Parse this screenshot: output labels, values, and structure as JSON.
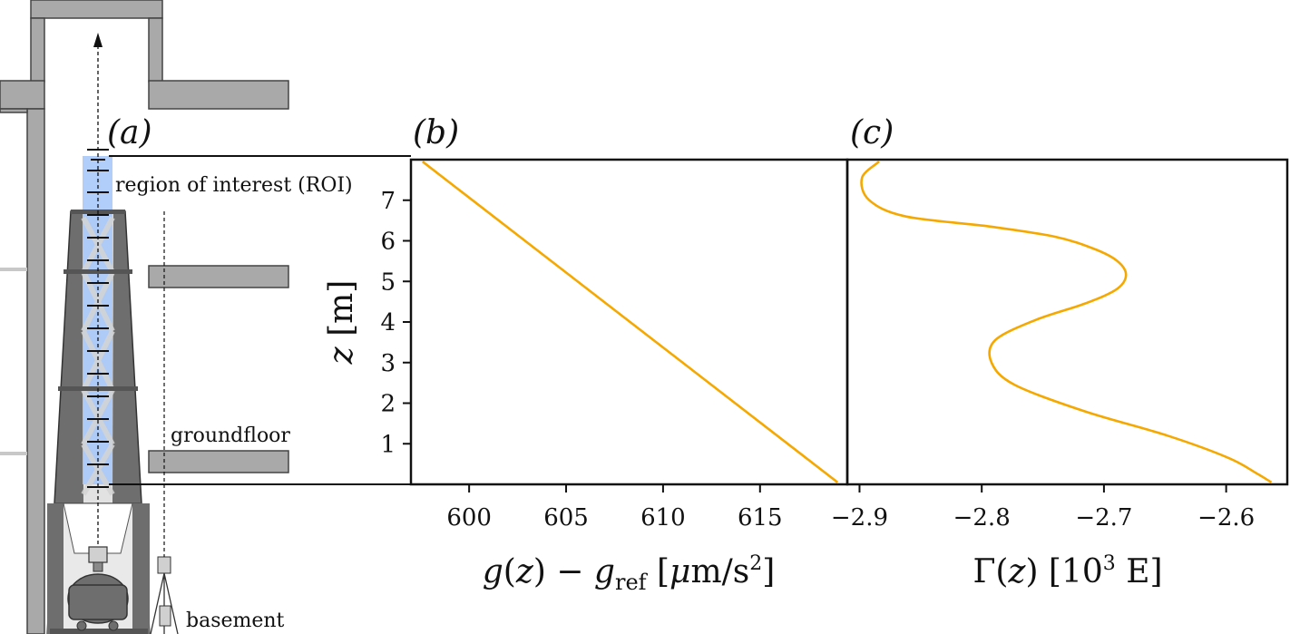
{
  "panels": {
    "a_label": "(a)",
    "b_label": "(b)",
    "c_label": "(c)"
  },
  "diagram": {
    "roi_label": "region of interest (ROI)",
    "groundfloor_label": "groundfloor",
    "basement_label": "basement",
    "colors": {
      "roi": "#a8c8f8",
      "building": "#a9a9a9",
      "tower": "#6e6e6e",
      "gravimeter": "#6e6e6e"
    }
  },
  "chart_data": [
    {
      "type": "line",
      "panel": "(b)",
      "xlabel": "g(z) − g_ref [μm/s²]",
      "ylabel": "z [m]",
      "xlim": [
        597,
        619.5
      ],
      "ylim": [
        0,
        8
      ],
      "xticks": [
        600,
        605,
        610,
        615
      ],
      "xtick_labels": [
        "600",
        "605",
        "610",
        "615"
      ],
      "yticks": [
        1,
        2,
        3,
        4,
        5,
        6,
        7
      ],
      "ytick_labels": [
        "1",
        "2",
        "3",
        "4",
        "5",
        "6",
        "7"
      ],
      "series": [
        {
          "color": "#f5a800",
          "x": [
            597.6,
            619.0
          ],
          "y": [
            7.95,
            0.05
          ]
        }
      ]
    },
    {
      "type": "line",
      "panel": "(c)",
      "xlabel": "Γ(z) [10³ E]",
      "ylabel": "",
      "xlim": [
        -2.91,
        -2.55
      ],
      "ylim": [
        0,
        8
      ],
      "xticks": [
        -2.9,
        -2.8,
        -2.7,
        -2.6
      ],
      "xtick_labels": [
        "−2.9",
        "−2.8",
        "−2.7",
        "−2.6"
      ],
      "series": [
        {
          "color": "#f5a800",
          "x": [
            -2.884,
            -2.898,
            -2.892,
            -2.862,
            -2.793,
            -2.74,
            -2.708,
            -2.689,
            -2.682,
            -2.69,
            -2.716,
            -2.756,
            -2.789,
            -2.792,
            -2.773,
            -2.716,
            -2.648,
            -2.598,
            -2.574,
            -2.563
          ],
          "y": [
            7.95,
            7.55,
            7.0,
            6.6,
            6.35,
            6.1,
            5.8,
            5.5,
            5.15,
            4.8,
            4.45,
            4.05,
            3.55,
            3.0,
            2.45,
            1.8,
            1.2,
            0.65,
            0.25,
            0.05
          ]
        }
      ]
    }
  ]
}
